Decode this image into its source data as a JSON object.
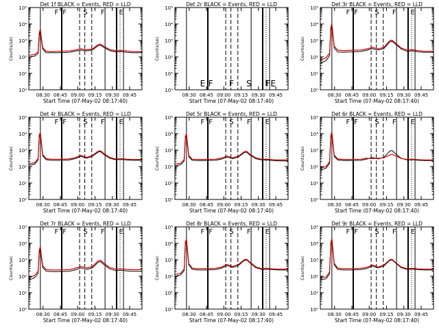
{
  "colors": {
    "events": "#000000",
    "lld": "#d00000",
    "background": "#ffffff",
    "axes": "#000000"
  },
  "shared": {
    "xlabel": "Start Time (07-May-02 08:17:40)",
    "ylabel": "Counts/sec",
    "xticks": [
      "08:30",
      "08:45",
      "09:00",
      "09:15",
      "09:30",
      "09:45"
    ],
    "yticks": [
      "10⁰",
      "10¹",
      "10²",
      "10³",
      "10⁴",
      "10⁵"
    ],
    "xlim_minutes_after_start": [
      0,
      98
    ],
    "ylim_log10": [
      0,
      5
    ],
    "scale": "log"
  },
  "chart_data": [
    {
      "type": "line",
      "title": "Det 1f BLACK = Events, RED = LLD",
      "series": [
        {
          "name": "Events",
          "x": [
            0,
            5,
            8,
            9,
            10,
            11,
            12,
            15,
            20,
            25,
            35,
            40,
            45,
            50,
            55,
            60,
            62,
            65,
            70,
            75,
            80,
            85,
            90,
            95,
            98
          ],
          "y": [
            100,
            110,
            160,
            2000,
            3500,
            900,
            300,
            180,
            180,
            180,
            190,
            220,
            260,
            230,
            260,
            480,
            520,
            380,
            240,
            200,
            210,
            190,
            180,
            180,
            180
          ]
        },
        {
          "name": "LLD",
          "x": [
            0,
            5,
            8,
            9,
            10,
            11,
            12,
            15,
            20,
            25,
            35,
            40,
            45,
            50,
            55,
            60,
            62,
            65,
            70,
            75,
            80,
            85,
            90,
            95,
            98
          ],
          "y": [
            125,
            140,
            200,
            2800,
            5000,
            1200,
            380,
            220,
            210,
            220,
            230,
            260,
            310,
            270,
            300,
            560,
            600,
            440,
            280,
            240,
            250,
            230,
            210,
            210,
            210
          ]
        }
      ],
      "markers": [
        "F",
        "F",
        "S",
        "F",
        "E"
      ]
    },
    {
      "type": "line",
      "title": "Det 2r BLACK = Events, RED = LLD",
      "series": [],
      "markers": [
        "E",
        "F",
        "F",
        "S",
        "F",
        "FE"
      ]
    },
    {
      "type": "line",
      "title": "Det 3r BLACK = Events, RED = LLD",
      "series": [
        {
          "name": "Events",
          "x": [
            0,
            5,
            8,
            9,
            10,
            11,
            12,
            15,
            20,
            25,
            35,
            40,
            45,
            50,
            55,
            60,
            62,
            65,
            70,
            75,
            80,
            85,
            90,
            95,
            98
          ],
          "y": [
            40,
            60,
            120,
            4000,
            8000,
            1600,
            350,
            200,
            190,
            200,
            210,
            250,
            320,
            260,
            320,
            800,
            900,
            600,
            300,
            220,
            230,
            200,
            190,
            190,
            190
          ]
        },
        {
          "name": "LLD",
          "x": [
            0,
            5,
            8,
            9,
            10,
            11,
            12,
            15,
            20,
            25,
            35,
            40,
            45,
            50,
            55,
            60,
            62,
            65,
            70,
            75,
            80,
            85,
            90,
            95,
            98
          ],
          "y": [
            60,
            90,
            170,
            5500,
            11000,
            2100,
            450,
            260,
            240,
            250,
            260,
            300,
            380,
            310,
            380,
            950,
            1050,
            700,
            350,
            260,
            270,
            240,
            220,
            220,
            220
          ]
        }
      ],
      "markers": [
        "F",
        "F",
        "S",
        "F",
        "E"
      ]
    },
    {
      "type": "line",
      "title": "Det 4r BLACK = Events, RED = LLD",
      "series": [
        {
          "name": "Events",
          "x": [
            0,
            5,
            8,
            9,
            10,
            11,
            12,
            15,
            20,
            25,
            35,
            40,
            45,
            50,
            55,
            60,
            62,
            65,
            70,
            75,
            80,
            85,
            90,
            95,
            98
          ],
          "y": [
            120,
            140,
            250,
            6000,
            9000,
            2000,
            450,
            260,
            240,
            240,
            250,
            300,
            420,
            320,
            420,
            750,
            820,
            550,
            320,
            260,
            270,
            250,
            240,
            240,
            240
          ]
        },
        {
          "name": "LLD",
          "x": [
            0,
            5,
            8,
            9,
            10,
            11,
            12,
            15,
            20,
            25,
            35,
            40,
            45,
            50,
            55,
            60,
            62,
            65,
            70,
            75,
            80,
            85,
            90,
            95,
            98
          ],
          "y": [
            150,
            170,
            300,
            8000,
            12000,
            2600,
            550,
            300,
            280,
            280,
            290,
            340,
            480,
            360,
            470,
            850,
            920,
            620,
            360,
            290,
            300,
            280,
            270,
            270,
            270
          ]
        }
      ],
      "markers": [
        "F",
        "F",
        "S",
        "F",
        "E"
      ]
    },
    {
      "type": "line",
      "title": "Det 5r BLACK = Events, RED = LLD",
      "series": [
        {
          "name": "Events",
          "x": [
            0,
            5,
            8,
            9,
            10,
            11,
            12,
            15,
            20,
            25,
            35,
            40,
            45,
            50,
            55,
            60,
            62,
            65,
            70,
            75,
            80,
            85,
            90,
            95,
            98
          ],
          "y": [
            110,
            130,
            220,
            5000,
            7500,
            1700,
            400,
            240,
            230,
            230,
            240,
            280,
            380,
            300,
            380,
            700,
            760,
            500,
            300,
            250,
            250,
            230,
            220,
            220,
            220
          ]
        },
        {
          "name": "LLD",
          "x": [
            0,
            5,
            8,
            9,
            10,
            11,
            12,
            15,
            20,
            25,
            35,
            40,
            45,
            50,
            55,
            60,
            62,
            65,
            70,
            75,
            80,
            85,
            90,
            95,
            98
          ],
          "y": [
            140,
            160,
            270,
            6500,
            10000,
            2200,
            480,
            280,
            270,
            270,
            280,
            320,
            440,
            340,
            430,
            800,
            860,
            570,
            340,
            280,
            280,
            260,
            250,
            250,
            250
          ]
        }
      ],
      "markers": [
        "F",
        "F",
        "S",
        "F",
        "E"
      ]
    },
    {
      "type": "line",
      "title": "Det 6r BLACK = Events, RED = LLD",
      "series": [
        {
          "name": "Events",
          "x": [
            0,
            5,
            8,
            9,
            10,
            11,
            12,
            15,
            20,
            25,
            35,
            40,
            45,
            50,
            55,
            60,
            62,
            65,
            70,
            75,
            80,
            85,
            90,
            95,
            98
          ],
          "y": [
            60,
            80,
            160,
            5500,
            10000,
            2000,
            420,
            250,
            230,
            230,
            240,
            280,
            360,
            290,
            360,
            850,
            950,
            620,
            320,
            250,
            260,
            240,
            230,
            230,
            230
          ]
        },
        {
          "name": "LLD",
          "x": [
            0,
            5,
            8,
            9,
            10,
            11,
            12,
            15,
            20,
            25,
            35,
            40,
            45,
            50,
            55,
            60,
            62,
            65,
            70,
            75,
            80,
            85,
            90,
            95,
            98
          ],
          "y": [
            80,
            100,
            200,
            7000,
            13000,
            2500,
            500,
            290,
            270,
            270,
            280,
            320,
            300,
            320,
            340,
            500,
            560,
            450,
            310,
            270,
            280,
            260,
            250,
            250,
            250
          ]
        }
      ],
      "markers": [
        "F",
        "F",
        "S",
        "F",
        "E"
      ]
    },
    {
      "type": "line",
      "title": "Det 7r BLACK = Events, RED = LLD",
      "series": [
        {
          "name": "Events",
          "x": [
            0,
            5,
            8,
            9,
            10,
            11,
            12,
            15,
            20,
            25,
            35,
            40,
            45,
            50,
            55,
            60,
            62,
            65,
            70,
            75,
            80,
            85,
            90,
            95,
            98
          ],
          "y": [
            60,
            80,
            150,
            2500,
            4500,
            1100,
            350,
            200,
            190,
            190,
            200,
            240,
            320,
            260,
            320,
            700,
            780,
            520,
            280,
            220,
            230,
            210,
            200,
            200,
            200
          ]
        },
        {
          "name": "LLD",
          "x": [
            0,
            5,
            8,
            9,
            10,
            11,
            12,
            15,
            20,
            25,
            35,
            40,
            45,
            50,
            55,
            60,
            62,
            65,
            70,
            75,
            80,
            85,
            90,
            95,
            98
          ],
          "y": [
            80,
            110,
            200,
            3500,
            6500,
            1500,
            450,
            250,
            240,
            240,
            250,
            300,
            390,
            320,
            390,
            850,
            940,
            630,
            340,
            270,
            280,
            260,
            250,
            250,
            250
          ]
        }
      ],
      "markers": [
        "F",
        "F",
        "S",
        "F",
        "E"
      ]
    },
    {
      "type": "line",
      "title": "Det 8r BLACK = Events, RED = LLD",
      "series": [
        {
          "name": "Events",
          "x": [
            0,
            5,
            8,
            9,
            10,
            11,
            12,
            15,
            20,
            25,
            35,
            40,
            45,
            50,
            55,
            60,
            62,
            65,
            70,
            75,
            80,
            85,
            90,
            95,
            98
          ],
          "y": [
            100,
            120,
            220,
            9000,
            14000,
            2800,
            500,
            260,
            240,
            240,
            250,
            300,
            450,
            340,
            450,
            900,
            1000,
            650,
            330,
            260,
            270,
            250,
            240,
            240,
            240
          ]
        },
        {
          "name": "LLD",
          "x": [
            0,
            5,
            8,
            9,
            10,
            11,
            12,
            15,
            20,
            25,
            35,
            40,
            45,
            50,
            55,
            60,
            62,
            65,
            70,
            75,
            80,
            85,
            90,
            95,
            98
          ],
          "y": [
            130,
            150,
            280,
            12000,
            18000,
            3500,
            600,
            310,
            290,
            290,
            300,
            350,
            520,
            390,
            520,
            1000,
            1100,
            720,
            370,
            290,
            300,
            280,
            270,
            270,
            270
          ]
        }
      ],
      "markers": [
        "F",
        "F",
        "S",
        "F",
        "E"
      ]
    },
    {
      "type": "line",
      "title": "Det 9r BLACK = Events, RED = LLD",
      "series": [
        {
          "name": "Events",
          "x": [
            0,
            5,
            8,
            9,
            10,
            11,
            12,
            15,
            20,
            25,
            35,
            40,
            45,
            50,
            55,
            60,
            62,
            65,
            70,
            75,
            80,
            85,
            90,
            95,
            98
          ],
          "y": [
            60,
            70,
            140,
            8000,
            16000,
            3000,
            500,
            260,
            240,
            240,
            250,
            290,
            420,
            320,
            420,
            900,
            1000,
            650,
            330,
            260,
            270,
            250,
            240,
            240,
            240
          ]
        },
        {
          "name": "LLD",
          "x": [
            0,
            5,
            8,
            9,
            10,
            11,
            12,
            15,
            20,
            25,
            35,
            40,
            45,
            50,
            55,
            60,
            62,
            65,
            70,
            75,
            80,
            85,
            90,
            95,
            98
          ],
          "y": [
            80,
            90,
            180,
            10000,
            20000,
            3800,
            620,
            310,
            290,
            290,
            300,
            340,
            480,
            370,
            480,
            980,
            1080,
            700,
            360,
            290,
            300,
            280,
            270,
            270,
            270
          ]
        }
      ],
      "markers": [
        "F",
        "F",
        "S",
        "F",
        "E"
      ]
    }
  ]
}
